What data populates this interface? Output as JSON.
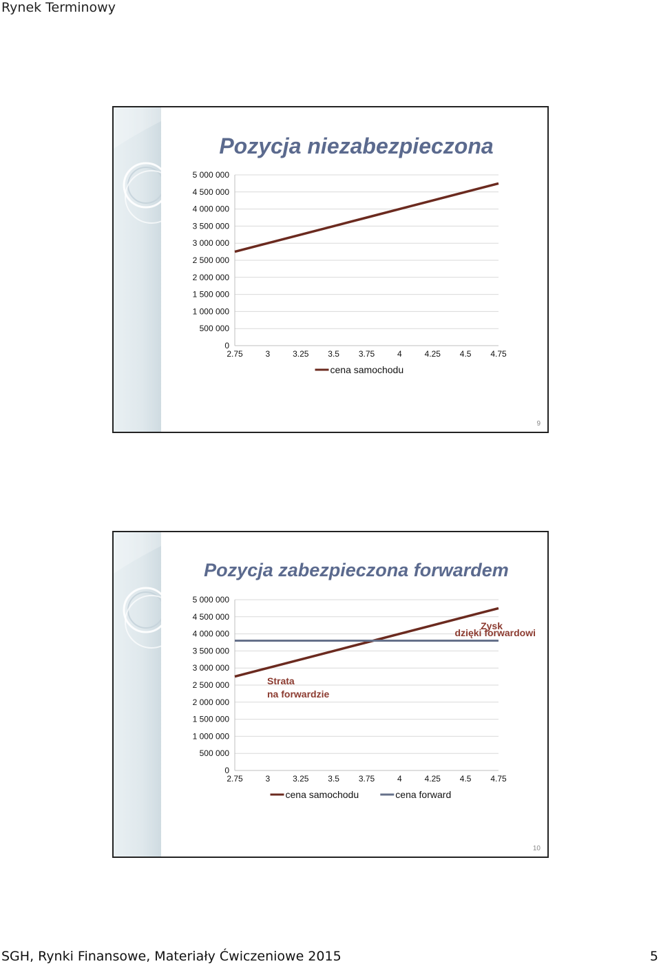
{
  "page": {
    "header": "Rynek Terminowy",
    "footer_left": "SGH, Rynki Finansowe, Materiały Ćwiczeniowe  2015",
    "page_number": "5"
  },
  "colors": {
    "title": "#5b6a8e",
    "series_samochodu": "#6b2a1f",
    "series_forward": "#65708a",
    "annotation": "#8b3a2f"
  },
  "slides": [
    {
      "title": "Pozycja niezabezpieczona",
      "number": "9",
      "chart_data": {
        "type": "line",
        "x": [
          2.75,
          3,
          3.25,
          3.5,
          3.75,
          4,
          4.25,
          4.5,
          4.75
        ],
        "x_tick_labels": [
          "2.75",
          "3",
          "3.25",
          "3.5",
          "3.75",
          "4",
          "4.25",
          "4.5",
          "4.75"
        ],
        "y_tick_labels": [
          "0",
          "500 000",
          "1 000 000",
          "1 500 000",
          "2 000 000",
          "2 500 000",
          "3 000 000",
          "3 500 000",
          "4 000 000",
          "4 500 000",
          "5 000 000"
        ],
        "ylim": [
          0,
          5000000
        ],
        "grid": true,
        "legend": "bottom",
        "series": [
          {
            "name": "cena samochodu",
            "values": [
              2750000,
              3000000,
              3250000,
              3500000,
              3750000,
              4000000,
              4250000,
              4500000,
              4750000
            ]
          }
        ]
      }
    },
    {
      "title": "Pozycja zabezpieczona forwardem",
      "number": "10",
      "chart_data": {
        "type": "line",
        "x": [
          2.75,
          3,
          3.25,
          3.5,
          3.75,
          4,
          4.25,
          4.5,
          4.75
        ],
        "x_tick_labels": [
          "2.75",
          "3",
          "3.25",
          "3.5",
          "3.75",
          "4",
          "4.25",
          "4.5",
          "4.75"
        ],
        "y_tick_labels": [
          "0",
          "500 000",
          "1 000 000",
          "1 500 000",
          "2 000 000",
          "2 500 000",
          "3 000 000",
          "3 500 000",
          "4 000 000",
          "4 500 000",
          "5 000 000"
        ],
        "ylim": [
          0,
          5000000
        ],
        "grid": true,
        "legend": "bottom",
        "series": [
          {
            "name": "cena samochodu",
            "values": [
              2750000,
              3000000,
              3250000,
              3500000,
              3750000,
              4000000,
              4250000,
              4500000,
              4750000
            ]
          },
          {
            "name": "cena forward",
            "values": [
              3800000,
              3800000,
              3800000,
              3800000,
              3800000,
              3800000,
              3800000,
              3800000,
              3800000
            ]
          }
        ],
        "annotations": [
          {
            "line1": "Zysk",
            "line2": "dzięki forwardowi"
          },
          {
            "line1": "Strata",
            "line2": "na forwardzie"
          }
        ]
      }
    }
  ]
}
